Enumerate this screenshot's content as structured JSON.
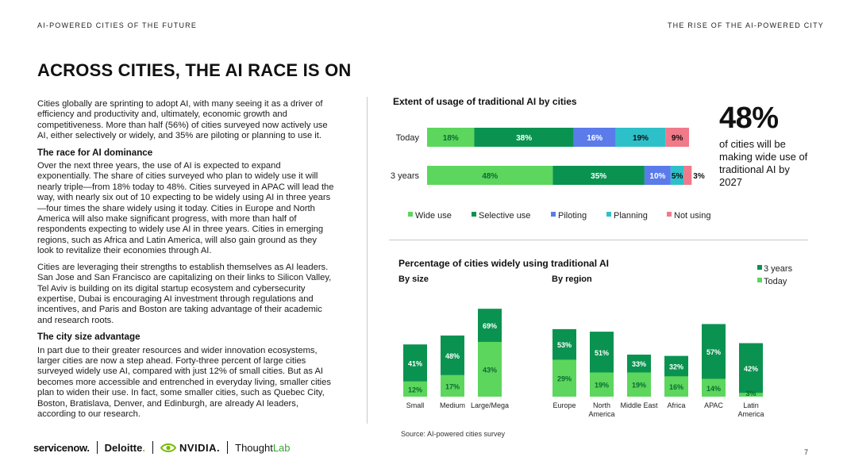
{
  "header": {
    "left": "AI-POWERED CITIES OF THE FUTURE",
    "right": "THE RISE OF THE AI-POWERED CITY"
  },
  "page_title": "ACROSS CITIES, THE AI RACE IS ON",
  "body": {
    "p1": "Cities globally are sprinting to adopt AI, with many seeing it as a driver of efficiency and productivity and, ultimately, economic growth and competitiveness. More than half (56%) of cities surveyed now actively use AI, either selectively or widely, and 35% are piloting or planning to use it.",
    "h1": "The race for AI dominance",
    "p2": "Over the next three years, the use of AI is expected to expand exponentially. The share of cities surveyed who plan to widely use it will nearly triple—from 18% today to 48%. Cities surveyed in APAC will lead the way, with nearly six out of 10 expecting to be widely using AI in three years—four times the share widely using it today. Cities in Europe and North America will also make significant progress, with more than half of respondents expecting to widely use AI in three years. Cities in emerging regions, such as Africa and Latin America, will also gain ground as they look to revitalize their economies through AI.",
    "p3": "Cities are leveraging their strengths to establish themselves as AI leaders. San Jose and San Francisco are capitalizing on their links to Silicon Valley, Tel Aviv is building on its digital startup ecosystem and cybersecurity expertise, Dubai is encouraging AI investment through regulations and incentives, and Paris and Boston are taking advantage of their academic and research roots.",
    "h2": "The city size advantage",
    "p4": "In part due to their greater resources and wider innovation ecosystems, larger cities are now a step ahead. Forty-three percent of large cities surveyed widely use AI, compared with just 12% of small cities. But as AI becomes more accessible and entrenched in everyday living, smaller cities plan to widen their use. In fact, some smaller cities, such as Quebec City, Boston, Bratislava, Denver, and Edinburgh, are already AI leaders, according to our research."
  },
  "highlight": {
    "value": "48%",
    "text": "of cities will be making wide use of traditional AI by 2027"
  },
  "colors": {
    "wide": "#5cd65c",
    "selective": "#0a9350",
    "piloting": "#5b7bea",
    "planning": "#2ec0c9",
    "not_using": "#f07a8a",
    "divider": "#c8c8c8"
  },
  "chart_data": [
    {
      "type": "bar",
      "orientation": "horizontal",
      "stacked": true,
      "title": "Extent of usage of traditional AI by cities",
      "categories": [
        "Today",
        "3 years"
      ],
      "series": [
        {
          "name": "Wide use",
          "values": [
            18,
            48
          ],
          "color": "#5cd65c"
        },
        {
          "name": "Selective use",
          "values": [
            38,
            35
          ],
          "color": "#0a9350"
        },
        {
          "name": "Piloting",
          "values": [
            16,
            10
          ],
          "color": "#5b7bea"
        },
        {
          "name": "Planning",
          "values": [
            19,
            5
          ],
          "color": "#2ec0c9"
        },
        {
          "name": "Not using",
          "values": [
            9,
            3
          ],
          "color": "#f07a8a"
        }
      ],
      "xlim": [
        0,
        100
      ],
      "legend": "bottom"
    },
    {
      "type": "bar",
      "stacked": true,
      "title": "Percentage of cities widely using traditional AI",
      "groups": [
        {
          "label": "By size",
          "categories": [
            "Small",
            "Medium",
            "Large/Mega"
          ]
        },
        {
          "label": "By region",
          "categories": [
            "Europe",
            "North America",
            "Middle East",
            "Africa",
            "APAC",
            "Latin America"
          ]
        }
      ],
      "categories": [
        "Small",
        "Medium",
        "Large/Mega",
        "Europe",
        "North America",
        "Middle East",
        "Africa",
        "APAC",
        "Latin America"
      ],
      "series": [
        {
          "name": "Today",
          "values": [
            12,
            17,
            43,
            29,
            19,
            19,
            16,
            14,
            3
          ],
          "color": "#5cd65c"
        },
        {
          "name": "3 years",
          "values": [
            41,
            48,
            69,
            53,
            51,
            33,
            32,
            57,
            42
          ],
          "color": "#0a9350"
        }
      ],
      "legend": "top-right",
      "source": "Source: AI-powered cities survey"
    }
  ],
  "footer": {
    "servicenow": "servicenow.",
    "deloitte": "Deloitte",
    "deloitte_dot": ".",
    "nvidia": "NVIDIA.",
    "thought": "Thought",
    "lab": "Lab",
    "page_number": "7"
  }
}
